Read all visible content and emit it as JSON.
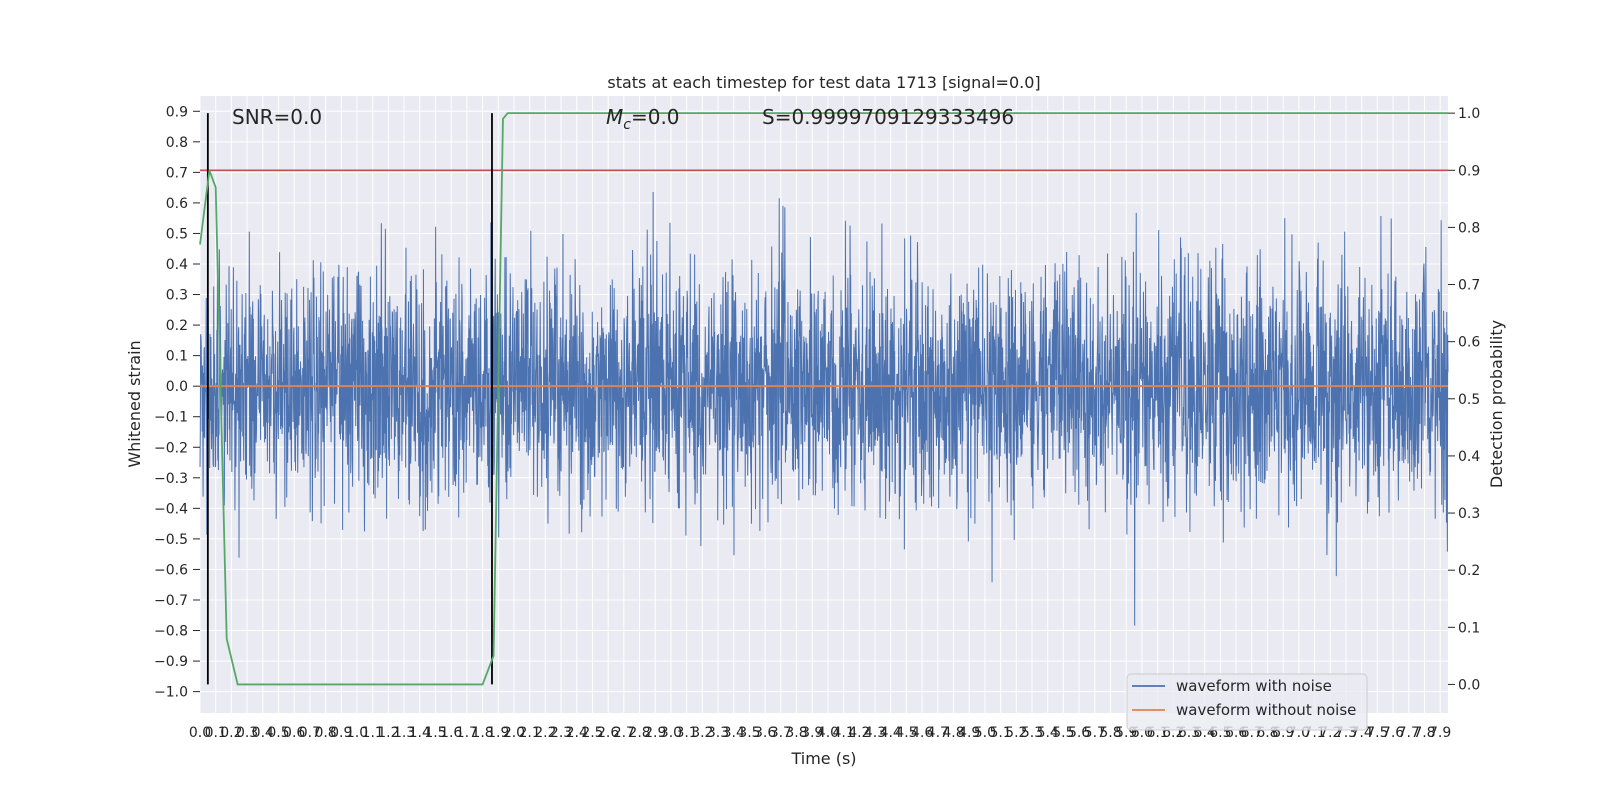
{
  "chart_data": {
    "type": "line",
    "title": "stats at each timestep for test data 1713 [signal=0.0]",
    "xlabel": "Time (s)",
    "ylabel": "Whitened strain",
    "y2label": "Detection probability",
    "xlim": [
      0.0,
      7.95
    ],
    "ylim": [
      -1.07,
      0.95
    ],
    "y2lim": [
      -0.05,
      1.03
    ],
    "x_ticks": [
      "0.0",
      "0.1",
      "0.2",
      "0.3",
      "0.4",
      "0.5",
      "0.6",
      "0.7",
      "0.8",
      "0.9",
      "1.0",
      "1.1",
      "1.2",
      "1.3",
      "1.4",
      "1.5",
      "1.6",
      "1.7",
      "1.8",
      "1.9",
      "2.0",
      "2.1",
      "2.2",
      "2.3",
      "2.4",
      "2.5",
      "2.6",
      "2.7",
      "2.8",
      "2.9",
      "3.0",
      "3.1",
      "3.2",
      "3.3",
      "3.4",
      "3.5",
      "3.6",
      "3.7",
      "3.8",
      "3.9",
      "4.0",
      "4.1",
      "4.2",
      "4.3",
      "4.4",
      "4.5",
      "4.6",
      "4.7",
      "4.8",
      "4.9",
      "5.0",
      "5.1",
      "5.2",
      "5.3",
      "5.4",
      "5.5",
      "5.6",
      "5.7",
      "5.8",
      "5.9",
      "6.0",
      "6.1",
      "6.2",
      "6.3",
      "6.4",
      "6.5",
      "6.6",
      "6.7",
      "6.8",
      "6.9",
      "7.0",
      "7.1",
      "7.2",
      "7.3",
      "7.4",
      "7.5",
      "7.6",
      "7.7",
      "7.8",
      "7.9"
    ],
    "y_ticks": [
      "0.9",
      "0.8",
      "0.7",
      "0.6",
      "0.5",
      "0.4",
      "0.3",
      "0.2",
      "0.1",
      "0.0",
      "-0.1",
      "-0.2",
      "-0.3",
      "-0.4",
      "-0.5",
      "-0.6",
      "-0.7",
      "-0.8",
      "-0.9",
      "-1.0"
    ],
    "y2_ticks": [
      "1.0",
      "0.9",
      "0.8",
      "0.7",
      "0.6",
      "0.5",
      "0.4",
      "0.3",
      "0.2",
      "0.1",
      "0.0"
    ],
    "series": [
      {
        "name": "waveform with noise",
        "color": "#4c72b0",
        "kind": "noise",
        "approx_range": [
          -1.0,
          0.86
        ]
      },
      {
        "name": "waveform without noise",
        "color": "#dd8452",
        "values": [
          [
            0.0,
            0.0
          ],
          [
            7.95,
            0.0
          ]
        ]
      }
    ],
    "detection_probability": {
      "color": "#55a868",
      "points": [
        [
          0.0,
          0.77
        ],
        [
          0.06,
          0.9
        ],
        [
          0.1,
          0.87
        ],
        [
          0.17,
          0.08
        ],
        [
          0.24,
          0.0
        ],
        [
          1.8,
          0.0
        ],
        [
          1.87,
          0.05
        ],
        [
          1.93,
          0.99
        ],
        [
          1.96,
          1.0
        ],
        [
          7.95,
          1.0
        ]
      ]
    },
    "threshold": {
      "value": 0.9,
      "axis": "right",
      "color": "#c44e52"
    },
    "vertical_markers": [
      0.05,
      1.86
    ],
    "annotations": {
      "snr": "SNR=0.0",
      "mc_symbol": "M",
      "mc_sub": "c",
      "mc_value": "=0.0",
      "s": "S=0.9999709129333496"
    },
    "legend_position": "lower right",
    "grid": true
  }
}
